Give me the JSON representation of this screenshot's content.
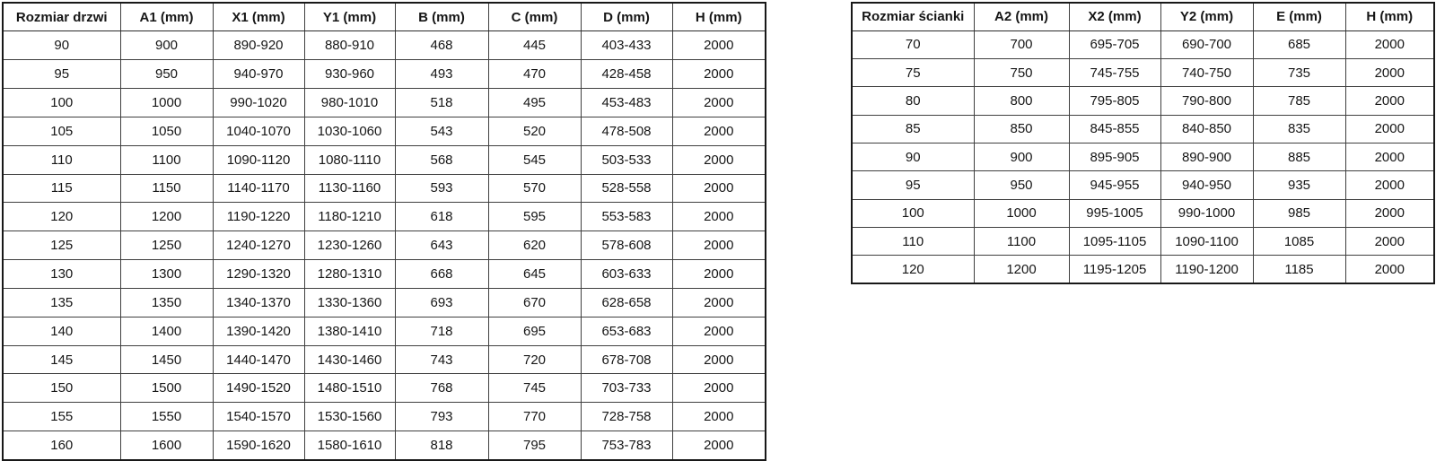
{
  "door_table": {
    "name": "door-size-table",
    "headers": [
      "Rozmiar drzwi",
      "A1 (mm)",
      "X1 (mm)",
      "Y1 (mm)",
      "B (mm)",
      "C (mm)",
      "D (mm)",
      "H (mm)"
    ],
    "rows": [
      [
        "90",
        "900",
        "890-920",
        "880-910",
        "468",
        "445",
        "403-433",
        "2000"
      ],
      [
        "95",
        "950",
        "940-970",
        "930-960",
        "493",
        "470",
        "428-458",
        "2000"
      ],
      [
        "100",
        "1000",
        "990-1020",
        "980-1010",
        "518",
        "495",
        "453-483",
        "2000"
      ],
      [
        "105",
        "1050",
        "1040-1070",
        "1030-1060",
        "543",
        "520",
        "478-508",
        "2000"
      ],
      [
        "110",
        "1100",
        "1090-1120",
        "1080-1110",
        "568",
        "545",
        "503-533",
        "2000"
      ],
      [
        "115",
        "1150",
        "1140-1170",
        "1130-1160",
        "593",
        "570",
        "528-558",
        "2000"
      ],
      [
        "120",
        "1200",
        "1190-1220",
        "1180-1210",
        "618",
        "595",
        "553-583",
        "2000"
      ],
      [
        "125",
        "1250",
        "1240-1270",
        "1230-1260",
        "643",
        "620",
        "578-608",
        "2000"
      ],
      [
        "130",
        "1300",
        "1290-1320",
        "1280-1310",
        "668",
        "645",
        "603-633",
        "2000"
      ],
      [
        "135",
        "1350",
        "1340-1370",
        "1330-1360",
        "693",
        "670",
        "628-658",
        "2000"
      ],
      [
        "140",
        "1400",
        "1390-1420",
        "1380-1410",
        "718",
        "695",
        "653-683",
        "2000"
      ],
      [
        "145",
        "1450",
        "1440-1470",
        "1430-1460",
        "743",
        "720",
        "678-708",
        "2000"
      ],
      [
        "150",
        "1500",
        "1490-1520",
        "1480-1510",
        "768",
        "745",
        "703-733",
        "2000"
      ],
      [
        "155",
        "1550",
        "1540-1570",
        "1530-1560",
        "793",
        "770",
        "728-758",
        "2000"
      ],
      [
        "160",
        "1600",
        "1590-1620",
        "1580-1610",
        "818",
        "795",
        "753-783",
        "2000"
      ]
    ]
  },
  "wall_table": {
    "name": "wall-size-table",
    "headers": [
      "Rozmiar ścianki",
      "A2 (mm)",
      "X2 (mm)",
      "Y2 (mm)",
      "E (mm)",
      "H (mm)"
    ],
    "rows": [
      [
        "70",
        "700",
        "695-705",
        "690-700",
        "685",
        "2000"
      ],
      [
        "75",
        "750",
        "745-755",
        "740-750",
        "735",
        "2000"
      ],
      [
        "80",
        "800",
        "795-805",
        "790-800",
        "785",
        "2000"
      ],
      [
        "85",
        "850",
        "845-855",
        "840-850",
        "835",
        "2000"
      ],
      [
        "90",
        "900",
        "895-905",
        "890-900",
        "885",
        "2000"
      ],
      [
        "95",
        "950",
        "945-955",
        "940-950",
        "935",
        "2000"
      ],
      [
        "100",
        "1000",
        "995-1005",
        "990-1000",
        "985",
        "2000"
      ],
      [
        "110",
        "1100",
        "1095-1105",
        "1090-1100",
        "1085",
        "2000"
      ],
      [
        "120",
        "1200",
        "1195-1205",
        "1190-1200",
        "1185",
        "2000"
      ]
    ]
  },
  "colors": {
    "border_outer": "#181818",
    "border_inner": "#3f3f3f",
    "text": "#161616",
    "background": "#ffffff"
  }
}
